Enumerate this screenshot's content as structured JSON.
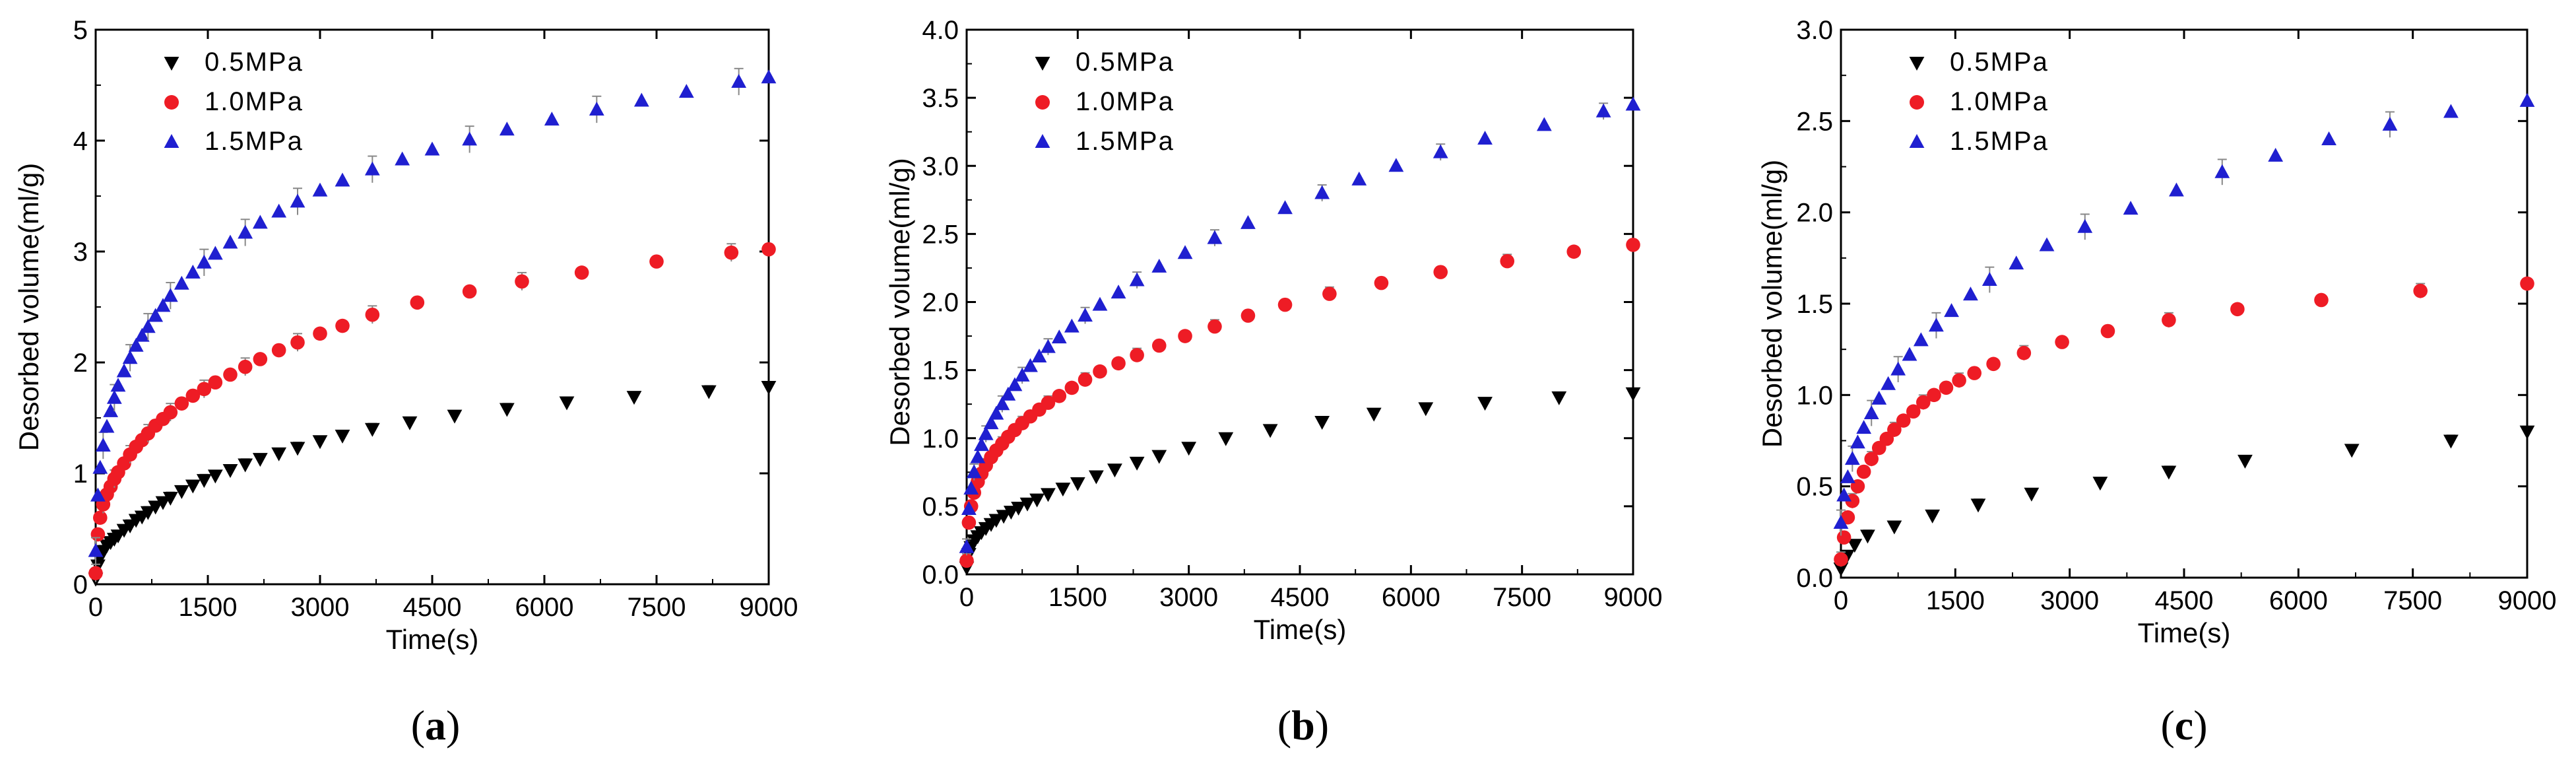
{
  "colors": {
    "0.5MPa": "#000000",
    "1.0MPa": "#ee1c25",
    "1.5MPa": "#1f1fd0"
  },
  "chart_data": [
    {
      "type": "scatter",
      "panel_label": "a",
      "xlabel": "Time(s)",
      "ylabel": "Desorbed volume(ml/g)",
      "xlim": [
        0,
        9000
      ],
      "ylim": [
        0,
        5
      ],
      "xticks": [
        0,
        1500,
        3000,
        4500,
        6000,
        7500,
        9000
      ],
      "yticks": [
        0,
        1,
        2,
        3,
        4,
        5
      ],
      "ytick_labels": [
        "0",
        "1",
        "2",
        "3",
        "4",
        "5"
      ],
      "legend_position": "top-left",
      "series": [
        {
          "name": "0.5MPa",
          "marker": "triangle-down",
          "x": [
            0,
            30,
            60,
            100,
            150,
            200,
            250,
            300,
            380,
            460,
            540,
            620,
            700,
            800,
            900,
            1000,
            1150,
            1300,
            1450,
            1600,
            1800,
            2000,
            2200,
            2450,
            2700,
            3000,
            3300,
            3700,
            4200,
            4800,
            5500,
            6300,
            7200,
            8200,
            9000
          ],
          "y": [
            0.05,
            0.17,
            0.24,
            0.3,
            0.35,
            0.38,
            0.41,
            0.44,
            0.49,
            0.53,
            0.58,
            0.61,
            0.65,
            0.7,
            0.74,
            0.78,
            0.84,
            0.89,
            0.94,
            0.98,
            1.03,
            1.08,
            1.13,
            1.18,
            1.23,
            1.29,
            1.34,
            1.4,
            1.46,
            1.52,
            1.58,
            1.64,
            1.69,
            1.74,
            1.78
          ],
          "error": 0.05
        },
        {
          "name": "1.0MPa",
          "marker": "circle",
          "x": [
            0,
            30,
            60,
            100,
            150,
            200,
            250,
            300,
            380,
            460,
            540,
            620,
            700,
            800,
            900,
            1000,
            1150,
            1300,
            1450,
            1600,
            1800,
            2000,
            2200,
            2450,
            2700,
            3000,
            3300,
            3700,
            4300,
            5000,
            5700,
            6500,
            7500,
            8500,
            9000
          ],
          "y": [
            0.1,
            0.45,
            0.6,
            0.72,
            0.81,
            0.88,
            0.95,
            1.01,
            1.09,
            1.17,
            1.24,
            1.3,
            1.36,
            1.43,
            1.49,
            1.55,
            1.63,
            1.7,
            1.76,
            1.82,
            1.89,
            1.96,
            2.03,
            2.11,
            2.18,
            2.26,
            2.33,
            2.43,
            2.54,
            2.64,
            2.73,
            2.81,
            2.91,
            2.99,
            3.02
          ],
          "error": 0.08
        },
        {
          "name": "1.5MPa",
          "marker": "triangle-up",
          "x": [
            0,
            30,
            60,
            100,
            150,
            200,
            250,
            300,
            380,
            460,
            540,
            620,
            700,
            800,
            900,
            1000,
            1150,
            1300,
            1450,
            1600,
            1800,
            2000,
            2200,
            2450,
            2700,
            3000,
            3300,
            3700,
            4100,
            4500,
            5000,
            5500,
            6100,
            6700,
            7300,
            7900,
            8600,
            9000
          ],
          "y": [
            0.3,
            0.8,
            1.05,
            1.25,
            1.42,
            1.56,
            1.68,
            1.79,
            1.92,
            2.04,
            2.15,
            2.24,
            2.32,
            2.42,
            2.51,
            2.6,
            2.71,
            2.81,
            2.9,
            2.98,
            3.08,
            3.17,
            3.26,
            3.36,
            3.45,
            3.55,
            3.64,
            3.74,
            3.83,
            3.92,
            4.01,
            4.1,
            4.19,
            4.28,
            4.36,
            4.44,
            4.53,
            4.57
          ],
          "error": 0.12
        }
      ]
    },
    {
      "type": "scatter",
      "panel_label": "b",
      "xlabel": "Time(s)",
      "ylabel": "Desorbed volume(ml/g)",
      "xlim": [
        0,
        9000
      ],
      "ylim": [
        0,
        4
      ],
      "xticks": [
        0,
        1500,
        3000,
        4500,
        6000,
        7500,
        9000
      ],
      "yticks": [
        0,
        0.5,
        1,
        1.5,
        2,
        2.5,
        3,
        3.5,
        4
      ],
      "ytick_labels": [
        "0.0",
        "0.5",
        "1.0",
        "1.5",
        "2.0",
        "2.5",
        "3.0",
        "3.5",
        "4.0"
      ],
      "legend_position": "top-left",
      "series": [
        {
          "name": "0.5MPa",
          "marker": "triangle-down",
          "x": [
            0,
            30,
            60,
            100,
            150,
            200,
            260,
            330,
            400,
            500,
            600,
            700,
            820,
            950,
            1100,
            1300,
            1500,
            1750,
            2000,
            2300,
            2600,
            3000,
            3500,
            4100,
            4800,
            5500,
            6200,
            7000,
            8000,
            9000
          ],
          "y": [
            0.05,
            0.15,
            0.2,
            0.25,
            0.28,
            0.31,
            0.34,
            0.37,
            0.4,
            0.43,
            0.46,
            0.49,
            0.52,
            0.55,
            0.59,
            0.63,
            0.67,
            0.72,
            0.77,
            0.82,
            0.87,
            0.93,
            1.0,
            1.06,
            1.12,
            1.18,
            1.22,
            1.26,
            1.3,
            1.33
          ],
          "error": 0.03
        },
        {
          "name": "1.0MPa",
          "marker": "circle",
          "x": [
            0,
            30,
            60,
            100,
            150,
            200,
            260,
            330,
            400,
            480,
            560,
            650,
            750,
            860,
            980,
            1100,
            1250,
            1420,
            1600,
            1800,
            2050,
            2300,
            2600,
            2950,
            3350,
            3800,
            4300,
            4900,
            5600,
            6400,
            7300,
            8200,
            9000
          ],
          "y": [
            0.1,
            0.38,
            0.5,
            0.6,
            0.68,
            0.74,
            0.8,
            0.86,
            0.91,
            0.96,
            1.01,
            1.06,
            1.11,
            1.16,
            1.21,
            1.26,
            1.31,
            1.37,
            1.43,
            1.49,
            1.55,
            1.61,
            1.68,
            1.75,
            1.82,
            1.9,
            1.98,
            2.06,
            2.14,
            2.22,
            2.3,
            2.37,
            2.42
          ],
          "error": 0.05
        },
        {
          "name": "1.5MPa",
          "marker": "triangle-up",
          "x": [
            0,
            30,
            60,
            100,
            150,
            200,
            260,
            330,
            400,
            480,
            560,
            650,
            750,
            860,
            980,
            1100,
            1250,
            1420,
            1600,
            1800,
            2050,
            2300,
            2600,
            2950,
            3350,
            3800,
            4300,
            4800,
            5300,
            5800,
            6400,
            7000,
            7800,
            8600,
            9000
          ],
          "y": [
            0.2,
            0.48,
            0.63,
            0.75,
            0.86,
            0.95,
            1.03,
            1.11,
            1.18,
            1.25,
            1.32,
            1.39,
            1.46,
            1.53,
            1.6,
            1.67,
            1.74,
            1.82,
            1.9,
            1.98,
            2.07,
            2.16,
            2.26,
            2.36,
            2.47,
            2.58,
            2.69,
            2.8,
            2.9,
            3.0,
            3.1,
            3.2,
            3.3,
            3.4,
            3.45
          ],
          "error": 0.06
        }
      ]
    },
    {
      "type": "scatter",
      "panel_label": "c",
      "xlabel": "Time(s)",
      "ylabel": "Desorbed volume(ml/g)",
      "xlim": [
        0,
        9000
      ],
      "ylim": [
        0,
        3
      ],
      "xticks": [
        0,
        1500,
        3000,
        4500,
        6000,
        7500,
        9000
      ],
      "yticks": [
        0,
        0.5,
        1,
        1.5,
        2,
        2.5,
        3
      ],
      "ytick_labels": [
        "0.0",
        "0.5",
        "1.0",
        "1.5",
        "2.0",
        "2.5",
        "3.0"
      ],
      "legend_position": "top-left",
      "series": [
        {
          "name": "0.5MPa",
          "marker": "triangle-down",
          "x": [
            0,
            80,
            180,
            350,
            700,
            1200,
            1800,
            2500,
            3400,
            4300,
            5300,
            6700,
            8000,
            9000
          ],
          "y": [
            0.05,
            0.12,
            0.18,
            0.23,
            0.28,
            0.34,
            0.4,
            0.46,
            0.52,
            0.58,
            0.64,
            0.7,
            0.75,
            0.8
          ],
          "error": 0.03
        },
        {
          "name": "1.0MPa",
          "marker": "circle",
          "x": [
            0,
            40,
            90,
            150,
            220,
            300,
            400,
            500,
            600,
            700,
            820,
            950,
            1080,
            1220,
            1380,
            1550,
            1750,
            2000,
            2400,
            2900,
            3500,
            4300,
            5200,
            6300,
            7600,
            9000
          ],
          "y": [
            0.1,
            0.22,
            0.33,
            0.42,
            0.5,
            0.58,
            0.65,
            0.71,
            0.76,
            0.81,
            0.86,
            0.91,
            0.96,
            1.0,
            1.04,
            1.08,
            1.12,
            1.17,
            1.23,
            1.29,
            1.35,
            1.41,
            1.47,
            1.52,
            1.57,
            1.61
          ],
          "error": 0.04
        },
        {
          "name": "1.5MPa",
          "marker": "triangle-up",
          "x": [
            0,
            40,
            90,
            150,
            220,
            300,
            400,
            500,
            620,
            750,
            900,
            1050,
            1250,
            1450,
            1700,
            1950,
            2300,
            2700,
            3200,
            3800,
            4400,
            5000,
            5700,
            6400,
            7200,
            8000,
            9000
          ],
          "y": [
            0.3,
            0.45,
            0.55,
            0.65,
            0.74,
            0.82,
            0.9,
            0.98,
            1.06,
            1.14,
            1.22,
            1.3,
            1.38,
            1.46,
            1.55,
            1.63,
            1.72,
            1.82,
            1.92,
            2.02,
            2.12,
            2.22,
            2.31,
            2.4,
            2.48,
            2.55,
            2.61
          ],
          "error": 0.07
        }
      ]
    }
  ]
}
